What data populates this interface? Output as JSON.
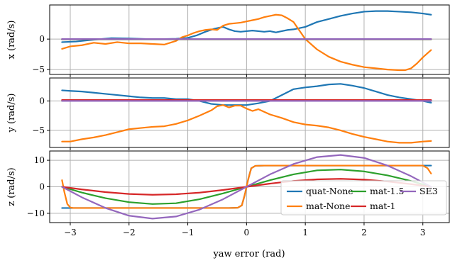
{
  "chart_data": {
    "type": "line",
    "xlabel": "yaw error (rad)",
    "xlim": [
      -3.35,
      3.45
    ],
    "xticks": [
      -3,
      -2,
      -1,
      0,
      1,
      2,
      3
    ],
    "xtick_labels": [
      "−3",
      "−2",
      "−1",
      "0",
      "1",
      "2",
      "3"
    ],
    "grid": true,
    "legend_location": "lower right of bottom panel",
    "series_styles": [
      {
        "name": "quat-None",
        "color": "#1f77b4"
      },
      {
        "name": "mat-None",
        "color": "#ff7f0e"
      },
      {
        "name": "mat-1.5",
        "color": "#2ca02c"
      },
      {
        "name": "mat-1",
        "color": "#d62728"
      },
      {
        "name": "SE3",
        "color": "#9467bd"
      }
    ],
    "panels": [
      {
        "ylabel": "x (rad/s)",
        "ylim": [
          -5.8,
          5.6
        ],
        "yticks": [
          -5,
          0
        ],
        "ytick_labels": [
          "−5",
          "0"
        ],
        "series": [
          {
            "name": "quat-None",
            "x": [
              -3.14,
              -2.9,
              -2.6,
              -2.3,
              -2.0,
              -1.7,
              -1.4,
              -1.2,
              -1.0,
              -0.85,
              -0.7,
              -0.55,
              -0.4,
              -0.3,
              -0.2,
              -0.1,
              0.0,
              0.1,
              0.2,
              0.3,
              0.4,
              0.5,
              0.6,
              0.7,
              0.8,
              0.9,
              1.0,
              1.2,
              1.4,
              1.6,
              1.8,
              2.0,
              2.2,
              2.4,
              2.6,
              2.8,
              3.0,
              3.14
            ],
            "y": [
              -0.5,
              -0.4,
              -0.1,
              0.15,
              0.1,
              0.0,
              0.0,
              0.05,
              0.2,
              0.6,
              1.2,
              1.7,
              2.0,
              1.6,
              1.3,
              1.2,
              1.3,
              1.4,
              1.3,
              1.2,
              1.3,
              1.1,
              1.3,
              1.5,
              1.6,
              1.8,
              2.0,
              2.8,
              3.3,
              3.8,
              4.2,
              4.5,
              4.6,
              4.6,
              4.5,
              4.4,
              4.2,
              4.0
            ]
          },
          {
            "name": "mat-None",
            "x": [
              -3.14,
              -3.0,
              -2.8,
              -2.6,
              -2.4,
              -2.2,
              -2.0,
              -1.8,
              -1.6,
              -1.4,
              -1.3,
              -1.2,
              -1.1,
              -1.0,
              -0.9,
              -0.8,
              -0.7,
              -0.6,
              -0.5,
              -0.4,
              -0.3,
              -0.2,
              -0.1,
              0.0,
              0.1,
              0.2,
              0.3,
              0.4,
              0.5,
              0.6,
              0.7,
              0.8,
              0.9,
              1.0,
              1.2,
              1.4,
              1.6,
              1.8,
              2.0,
              2.2,
              2.4,
              2.6,
              2.7,
              2.8,
              2.9,
              3.0,
              3.14
            ],
            "y": [
              -1.6,
              -1.2,
              -1.0,
              -0.6,
              -0.8,
              -0.5,
              -0.7,
              -0.7,
              -0.8,
              -0.9,
              -0.6,
              -0.3,
              0.3,
              0.6,
              1.0,
              1.3,
              1.5,
              1.6,
              1.5,
              2.2,
              2.5,
              2.6,
              2.7,
              2.9,
              3.1,
              3.3,
              3.6,
              3.8,
              4.0,
              3.9,
              3.4,
              2.8,
              1.4,
              0.0,
              -1.7,
              -2.9,
              -3.7,
              -4.2,
              -4.6,
              -4.8,
              -5.0,
              -5.1,
              -5.1,
              -4.8,
              -4.0,
              -3.0,
              -1.8
            ]
          },
          {
            "name": "mat-1.5",
            "x": [
              -3.14,
              3.14
            ],
            "y": [
              -0.05,
              -0.05
            ]
          },
          {
            "name": "mat-1",
            "x": [
              -3.14,
              3.14
            ],
            "y": [
              0.0,
              0.0
            ]
          },
          {
            "name": "SE3",
            "x": [
              -3.14,
              3.14
            ],
            "y": [
              0.0,
              0.0
            ]
          }
        ]
      },
      {
        "ylabel": "y (rad/s)",
        "ylim": [
          -7.9,
          3.9
        ],
        "yticks": [
          -5,
          0
        ],
        "ytick_labels": [
          "−5",
          "0"
        ],
        "series": [
          {
            "name": "quat-None",
            "x": [
              -3.14,
              -3.0,
              -2.8,
              -2.6,
              -2.4,
              -2.2,
              -2.0,
              -1.8,
              -1.6,
              -1.4,
              -1.2,
              -1.0,
              -0.8,
              -0.6,
              -0.4,
              -0.2,
              0.0,
              0.2,
              0.4,
              0.6,
              0.8,
              1.0,
              1.2,
              1.4,
              1.6,
              1.8,
              2.0,
              2.2,
              2.4,
              2.6,
              2.8,
              3.0,
              3.14
            ],
            "y": [
              1.8,
              1.7,
              1.6,
              1.4,
              1.2,
              1.0,
              0.8,
              0.6,
              0.5,
              0.5,
              0.3,
              0.3,
              0.0,
              -0.5,
              -0.7,
              -0.7,
              -0.7,
              -0.4,
              0.0,
              1.0,
              2.0,
              2.3,
              2.5,
              2.8,
              2.9,
              2.6,
              2.2,
              1.6,
              1.0,
              0.6,
              0.3,
              0.0,
              -0.3
            ]
          },
          {
            "name": "mat-None",
            "x": [
              -3.14,
              -3.0,
              -2.8,
              -2.6,
              -2.4,
              -2.2,
              -2.0,
              -1.8,
              -1.6,
              -1.4,
              -1.2,
              -1.0,
              -0.8,
              -0.6,
              -0.5,
              -0.4,
              -0.3,
              -0.2,
              -0.1,
              0.0,
              0.1,
              0.2,
              0.4,
              0.6,
              0.8,
              1.0,
              1.2,
              1.4,
              1.6,
              1.8,
              2.0,
              2.2,
              2.4,
              2.6,
              2.8,
              3.0,
              3.14
            ],
            "y": [
              -6.9,
              -6.9,
              -6.5,
              -6.2,
              -5.8,
              -5.3,
              -4.8,
              -4.6,
              -4.4,
              -4.3,
              -3.9,
              -3.3,
              -2.5,
              -1.6,
              -0.9,
              -0.7,
              -1.1,
              -0.8,
              -0.8,
              -1.3,
              -1.7,
              -1.4,
              -2.3,
              -2.9,
              -3.6,
              -4.0,
              -4.2,
              -4.5,
              -5.0,
              -5.6,
              -6.1,
              -6.5,
              -6.9,
              -7.1,
              -7.1,
              -6.9,
              -6.8
            ]
          },
          {
            "name": "mat-1.5",
            "x": [
              -3.14,
              3.14
            ],
            "y": [
              0.0,
              0.0
            ]
          },
          {
            "name": "mat-1",
            "x": [
              -3.14,
              3.14
            ],
            "y": [
              0.15,
              0.15
            ]
          },
          {
            "name": "SE3",
            "x": [
              -3.14,
              3.14
            ],
            "y": [
              0.0,
              0.0
            ]
          }
        ]
      },
      {
        "ylabel": "z (rad/s)",
        "ylim": [
          -13.5,
          13.5
        ],
        "yticks": [
          -10,
          0,
          10
        ],
        "ytick_labels": [
          "−10",
          "0",
          "10"
        ],
        "series": [
          {
            "name": "quat-None",
            "x": [
              -3.14,
              -3.05,
              -3.0,
              -2.5,
              -1.5,
              -0.3,
              -0.15,
              -0.08,
              -0.03,
              0.0,
              0.03,
              0.08,
              0.15,
              0.3,
              1.5,
              2.5,
              3.1,
              3.14
            ],
            "y": [
              -8.0,
              -8.0,
              -8.0,
              -8.0,
              -8.0,
              -8.0,
              -7.9,
              -7.0,
              -3.0,
              0.0,
              3.0,
              7.0,
              7.9,
              8.0,
              8.0,
              8.0,
              8.0,
              8.0
            ]
          },
          {
            "name": "mat-None",
            "x": [
              -3.14,
              -3.1,
              -3.05,
              -3.0,
              -2.95,
              -2.5,
              -1.5,
              -0.3,
              -0.15,
              -0.08,
              -0.03,
              0.0,
              0.03,
              0.08,
              0.15,
              0.3,
              1.5,
              2.5,
              3.0,
              3.08,
              3.14
            ],
            "y": [
              2.5,
              -2.0,
              -6.5,
              -7.8,
              -8.0,
              -8.0,
              -8.0,
              -8.0,
              -7.9,
              -7.0,
              -3.0,
              0.0,
              3.0,
              7.0,
              7.9,
              8.0,
              8.0,
              8.0,
              8.0,
              7.0,
              5.0
            ]
          },
          {
            "name": "mat-1.5",
            "x": [
              -3.14,
              -2.8,
              -2.4,
              -2.0,
              -1.6,
              -1.2,
              -0.8,
              -0.4,
              0.0,
              0.4,
              0.8,
              1.2,
              1.6,
              2.0,
              2.4,
              2.8,
              3.14
            ],
            "y": [
              0.0,
              -2.2,
              -4.3,
              -5.8,
              -6.5,
              -6.2,
              -4.7,
              -2.5,
              0.0,
              2.5,
              4.7,
              6.2,
              6.5,
              5.8,
              4.3,
              2.2,
              0.0
            ]
          },
          {
            "name": "mat-1",
            "x": [
              -3.14,
              -2.8,
              -2.4,
              -2.0,
              -1.6,
              -1.2,
              -0.8,
              -0.4,
              0.0,
              0.4,
              0.8,
              1.2,
              1.6,
              2.0,
              2.4,
              2.8,
              3.14
            ],
            "y": [
              0.0,
              -1.0,
              -2.0,
              -2.7,
              -3.0,
              -2.8,
              -2.2,
              -1.2,
              0.0,
              1.2,
              2.2,
              2.8,
              3.0,
              2.7,
              2.0,
              1.0,
              0.0
            ]
          },
          {
            "name": "SE3",
            "x": [
              -3.14,
              -2.8,
              -2.4,
              -2.0,
              -1.6,
              -1.2,
              -0.8,
              -0.4,
              0.0,
              0.4,
              0.8,
              1.2,
              1.6,
              2.0,
              2.4,
              2.8,
              3.14
            ],
            "y": [
              0.0,
              -4.0,
              -8.0,
              -10.9,
              -12.0,
              -11.2,
              -8.6,
              -4.7,
              0.0,
              4.7,
              8.6,
              11.2,
              12.0,
              10.9,
              8.0,
              4.0,
              0.0
            ]
          }
        ]
      }
    ]
  }
}
